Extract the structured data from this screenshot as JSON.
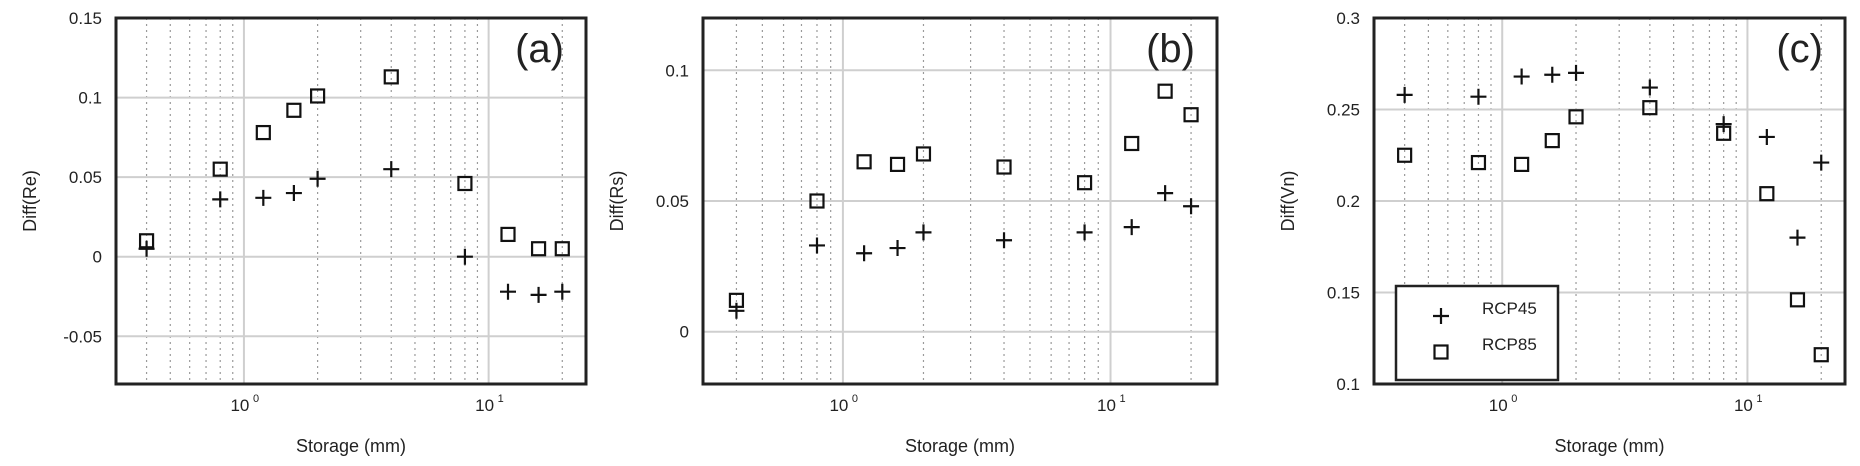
{
  "chart_data": [
    {
      "type": "scatter",
      "panel_label": "(a)",
      "xlabel": "Storage (mm)",
      "ylabel": "Diff(Re)",
      "x_scale": "log",
      "xlim": [
        0.3,
        25
      ],
      "ylim": [
        -0.08,
        0.15
      ],
      "y_ticks": [
        -0.05,
        0,
        0.05,
        0.1,
        0.15
      ],
      "y_tick_labels": [
        "-0.05",
        "0",
        "0.05",
        "0.1",
        "0.15"
      ],
      "x_tick_labels": [
        {
          "base": "10",
          "exp": "0"
        },
        {
          "base": "10",
          "exp": "1"
        }
      ],
      "grid": true,
      "series": [
        {
          "marker": "plus",
          "x": [
            0.4,
            0.8,
            1.2,
            1.6,
            2,
            4,
            8,
            12,
            16,
            20
          ],
          "y": [
            0.005,
            0.036,
            0.037,
            0.04,
            0.049,
            0.055,
            0.0,
            -0.022,
            -0.024,
            -0.022
          ]
        },
        {
          "marker": "square",
          "x": [
            0.4,
            0.8,
            1.2,
            1.6,
            2,
            4,
            8,
            12,
            16,
            20
          ],
          "y": [
            0.01,
            0.055,
            0.078,
            0.092,
            0.101,
            0.113,
            0.046,
            0.014,
            0.005,
            0.005
          ]
        }
      ]
    },
    {
      "type": "scatter",
      "panel_label": "(b)",
      "xlabel": "Storage (mm)",
      "ylabel": "Diff(Rs)",
      "x_scale": "log",
      "xlim": [
        0.3,
        25
      ],
      "ylim": [
        -0.02,
        0.12
      ],
      "y_ticks": [
        0,
        0.05,
        0.1
      ],
      "y_tick_labels": [
        "0",
        "0.05",
        "0.1"
      ],
      "x_tick_labels": [
        {
          "base": "10",
          "exp": "0"
        },
        {
          "base": "10",
          "exp": "1"
        }
      ],
      "grid": true,
      "series": [
        {
          "marker": "plus",
          "x": [
            0.4,
            0.8,
            1.2,
            1.6,
            2,
            4,
            8,
            12,
            16,
            20
          ],
          "y": [
            0.008,
            0.033,
            0.03,
            0.032,
            0.038,
            0.035,
            0.038,
            0.04,
            0.053,
            0.048
          ]
        },
        {
          "marker": "square",
          "x": [
            0.4,
            0.8,
            1.2,
            1.6,
            2,
            4,
            8,
            12,
            16,
            20
          ],
          "y": [
            0.012,
            0.05,
            0.065,
            0.064,
            0.068,
            0.063,
            0.057,
            0.072,
            0.092,
            0.083
          ]
        }
      ]
    },
    {
      "type": "scatter",
      "panel_label": "(c)",
      "xlabel": "Storage (mm)",
      "ylabel": "Diff(Vn)",
      "x_scale": "log",
      "xlim": [
        0.3,
        25
      ],
      "ylim": [
        0.1,
        0.3
      ],
      "y_ticks": [
        0.1,
        0.15,
        0.2,
        0.25,
        0.3
      ],
      "y_tick_labels": [
        "0.1",
        "0.15",
        "0.2",
        "0.25",
        "0.3"
      ],
      "x_tick_labels": [
        {
          "base": "10",
          "exp": "0"
        },
        {
          "base": "10",
          "exp": "1"
        }
      ],
      "grid": true,
      "legend": {
        "placement": "bottom-left",
        "entries": [
          {
            "marker": "plus",
            "label": "RCP45"
          },
          {
            "marker": "square",
            "label": "RCP85"
          }
        ]
      },
      "series": [
        {
          "name": "RCP45",
          "marker": "plus",
          "x": [
            0.4,
            0.8,
            1.2,
            1.6,
            2,
            4,
            8,
            12,
            16,
            20
          ],
          "y": [
            0.258,
            0.257,
            0.268,
            0.269,
            0.27,
            0.262,
            0.242,
            0.235,
            0.18,
            0.221
          ]
        },
        {
          "name": "RCP85",
          "marker": "square",
          "x": [
            0.4,
            0.8,
            1.2,
            1.6,
            2,
            4,
            8,
            12,
            16,
            20
          ],
          "y": [
            0.225,
            0.221,
            0.22,
            0.233,
            0.246,
            0.251,
            0.237,
            0.204,
            0.146,
            0.116
          ]
        }
      ]
    }
  ]
}
